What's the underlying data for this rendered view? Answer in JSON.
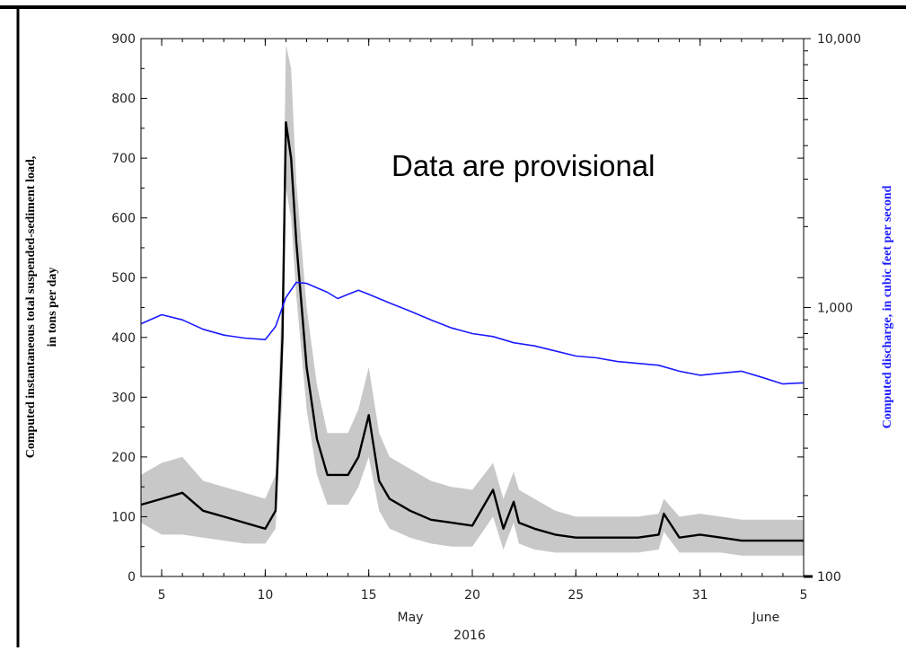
{
  "overlay_note": "Data are provisional",
  "colors": {
    "discharge": "#1a1aff",
    "load": "#000000",
    "uncertainty_band": "#c8c8c8",
    "frame": "#000000"
  },
  "chart_data": {
    "type": "line",
    "title": "",
    "xlabel_month_may": "May",
    "xlabel_month_june": "June",
    "xlabel_year": "2016",
    "ylabel_left_line1": "Computed instantaneous total suspended-sediment load,",
    "ylabel_left_line2": "in tons per day",
    "ylabel_right": "Computed discharge, in cubic feet per second",
    "ylim_left": [
      0,
      900
    ],
    "ylim_right": [
      100,
      10000
    ],
    "right_scale": "log",
    "grid": false,
    "x_range": [
      "2016-05-04",
      "2016-06-05"
    ],
    "x_tick_labels": [
      "5",
      "10",
      "15",
      "20",
      "25",
      "31",
      "5"
    ],
    "x_tick_dates": [
      "2016-05-05",
      "2016-05-10",
      "2016-05-15",
      "2016-05-20",
      "2016-05-25",
      "2016-05-31",
      "2016-06-05"
    ],
    "y_left_tick_labels": [
      "0",
      "100",
      "200",
      "300",
      "400",
      "500",
      "600",
      "700",
      "800",
      "900"
    ],
    "y_left_tick_values": [
      0,
      100,
      200,
      300,
      400,
      500,
      600,
      700,
      800,
      900
    ],
    "y_right_tick_labels": [
      "100",
      "1,000",
      "10,000"
    ],
    "y_right_tick_values": [
      100,
      1000,
      10000
    ],
    "series": [
      {
        "axis": "left",
        "x": [
          "2016-05-04",
          "2016-05-05",
          "2016-05-06",
          "2016-05-07",
          "2016-05-08",
          "2016-05-09",
          "2016-05-10",
          "2016-05-10T12:00",
          "2016-05-10T20:00",
          "2016-05-11",
          "2016-05-11T06:00",
          "2016-05-11T12:00",
          "2016-05-12",
          "2016-05-12T12:00",
          "2016-05-13",
          "2016-05-14",
          "2016-05-14T12:00",
          "2016-05-15",
          "2016-05-15T12:00",
          "2016-05-16",
          "2016-05-17",
          "2016-05-18",
          "2016-05-19",
          "2016-05-20",
          "2016-05-21",
          "2016-05-21T12:00",
          "2016-05-22",
          "2016-05-22T06:00",
          "2016-05-23",
          "2016-05-24",
          "2016-05-25",
          "2016-05-26",
          "2016-05-27",
          "2016-05-28",
          "2016-05-29",
          "2016-05-29T06:00",
          "2016-05-30",
          "2016-05-31",
          "2016-06-01",
          "2016-06-02",
          "2016-06-03",
          "2016-06-04",
          "2016-06-05"
        ],
        "values": [
          120,
          130,
          140,
          110,
          100,
          90,
          80,
          110,
          400,
          760,
          700,
          560,
          350,
          230,
          170,
          170,
          200,
          270,
          160,
          130,
          110,
          95,
          90,
          85,
          145,
          80,
          125,
          90,
          80,
          70,
          65,
          65,
          65,
          65,
          70,
          105,
          65,
          70,
          65,
          60,
          60,
          60,
          60
        ],
        "band_low": [
          90,
          70,
          70,
          65,
          60,
          55,
          55,
          80,
          300,
          650,
          600,
          470,
          280,
          170,
          120,
          120,
          150,
          200,
          110,
          80,
          65,
          55,
          50,
          50,
          100,
          45,
          90,
          55,
          45,
          40,
          40,
          40,
          40,
          40,
          45,
          75,
          40,
          40,
          40,
          35,
          35,
          35,
          35
        ],
        "band_high": [
          170,
          190,
          200,
          160,
          150,
          140,
          130,
          170,
          500,
          890,
          850,
          660,
          450,
          320,
          240,
          240,
          280,
          350,
          240,
          200,
          180,
          160,
          150,
          145,
          190,
          130,
          175,
          145,
          130,
          110,
          100,
          100,
          100,
          100,
          105,
          130,
          100,
          105,
          100,
          95,
          95,
          95,
          95
        ]
      },
      {
        "axis": "right",
        "x": [
          "2016-05-04",
          "2016-05-05",
          "2016-05-06",
          "2016-05-07",
          "2016-05-08",
          "2016-05-09",
          "2016-05-10",
          "2016-05-10T12:00",
          "2016-05-11",
          "2016-05-11T12:00",
          "2016-05-12",
          "2016-05-13",
          "2016-05-13T12:00",
          "2016-05-14",
          "2016-05-14T12:00",
          "2016-05-15",
          "2016-05-16",
          "2016-05-17",
          "2016-05-18",
          "2016-05-19",
          "2016-05-20",
          "2016-05-21",
          "2016-05-22",
          "2016-05-23",
          "2016-05-24",
          "2016-05-25",
          "2016-05-26",
          "2016-05-27",
          "2016-05-28",
          "2016-05-29",
          "2016-05-30",
          "2016-05-31",
          "2016-06-01",
          "2016-06-02",
          "2016-06-03",
          "2016-06-04",
          "2016-06-05"
        ],
        "values": [
          870,
          940,
          900,
          830,
          790,
          770,
          760,
          850,
          1090,
          1240,
          1230,
          1140,
          1080,
          1120,
          1160,
          1120,
          1040,
          970,
          900,
          840,
          800,
          780,
          740,
          720,
          690,
          660,
          650,
          630,
          620,
          610,
          580,
          560,
          570,
          580,
          550,
          520,
          525
        ]
      }
    ]
  }
}
